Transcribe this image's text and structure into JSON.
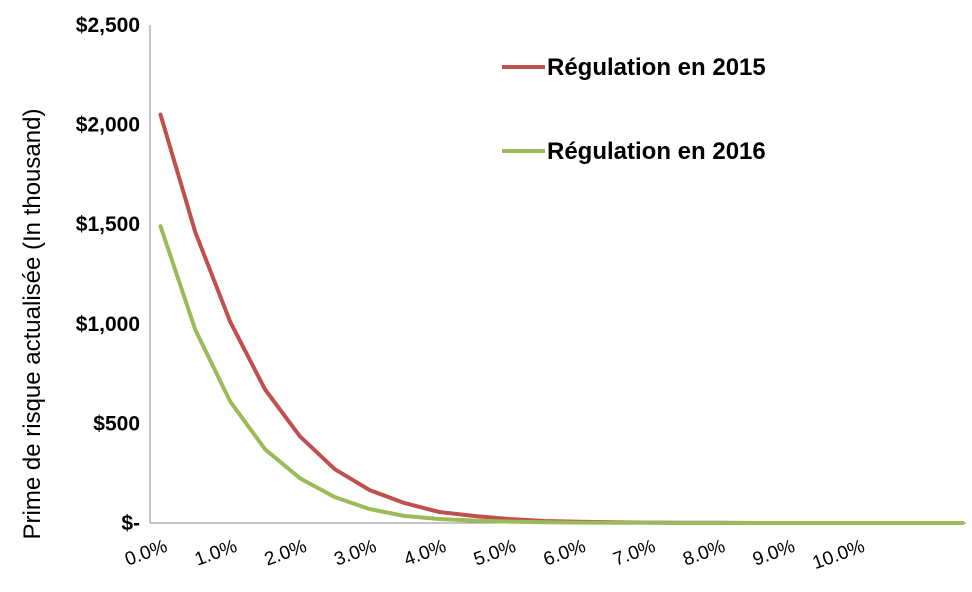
{
  "chart_data": {
    "type": "line",
    "title": "",
    "xlabel": "",
    "ylabel": "Prime de risque actualisée (In thousand)",
    "x": [
      0.0,
      0.5,
      1.0,
      1.5,
      2.0,
      2.5,
      3.0,
      3.5,
      4.0,
      4.5,
      5.0,
      5.5,
      6.0,
      6.5,
      7.0,
      7.5,
      8.0,
      8.5,
      9.0,
      9.5,
      10.0,
      10.5,
      11.0,
      11.5
    ],
    "x_tick_labels": [
      "0.0%",
      "1.0%",
      "2.0%",
      "3.0%",
      "4.0%",
      "5.0%",
      "6.0%",
      "7.0%",
      "8.0%",
      "9.0%",
      "10.0%"
    ],
    "x_tick_values": [
      0,
      1,
      2,
      3,
      4,
      5,
      6,
      7,
      8,
      9,
      10
    ],
    "xlim": [
      -0.15,
      11.55
    ],
    "y_tick_labels": [
      "$-",
      "$500",
      "$1,000",
      "$1,500",
      "$2,000",
      "$2,500"
    ],
    "y_tick_values": [
      0,
      500,
      1000,
      1500,
      2000,
      2500
    ],
    "ylim": [
      0,
      2500
    ],
    "grid": false,
    "legend_position": "top-right",
    "series": [
      {
        "name": "Régulation en 2015",
        "color": "#c0504d",
        "values": [
          2050,
          1460,
          1010,
          670,
          435,
          270,
          165,
          100,
          55,
          35,
          20,
          10,
          6,
          4,
          2,
          1,
          1,
          0,
          0,
          0,
          0,
          0,
          0,
          0
        ]
      },
      {
        "name": "Régulation en 2016",
        "color": "#9bbb59",
        "values": [
          1490,
          970,
          610,
          370,
          225,
          130,
          70,
          35,
          20,
          12,
          7,
          4,
          2,
          1,
          1,
          0,
          0,
          0,
          0,
          0,
          0,
          0,
          0,
          0
        ]
      }
    ]
  }
}
